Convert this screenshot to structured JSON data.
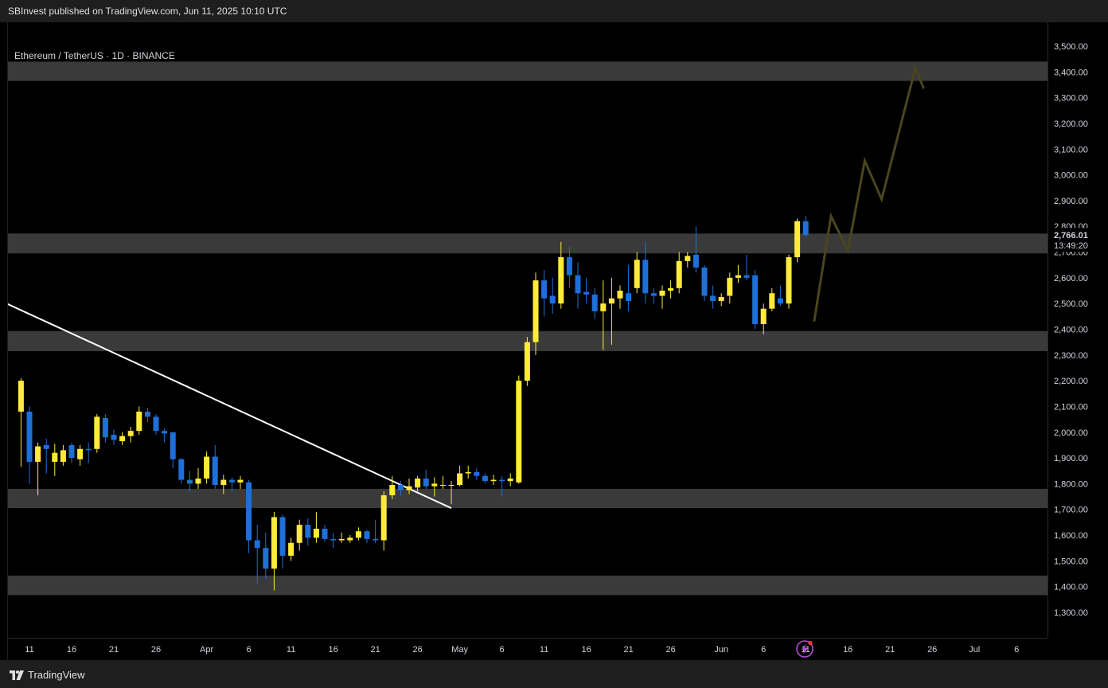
{
  "header": {
    "publish_note": "SBInvest published on TradingView.com, Jun 11, 2025 10:10 UTC"
  },
  "symbol": {
    "label": "Ethereum / TetherUS · 1D · BINANCE"
  },
  "footer": {
    "brand": "TradingView"
  },
  "colors": {
    "up": "#ffeb3b",
    "down": "#1e6fd9",
    "zone": "#3a3a3a",
    "trendline": "#ffffff",
    "projection": "#4a4520",
    "background": "#000000"
  },
  "icons": {
    "logo": "tradingview-logo-icon",
    "bolt": "lightning-bolt-icon"
  },
  "chart_data": {
    "type": "candlestick",
    "title": "Ethereum / TetherUS · 1D · BINANCE",
    "xlabel": "",
    "ylabel": "",
    "y_axis": {
      "position": "right",
      "range": [
        1230,
        3570
      ],
      "ticks": [
        "1,300.00",
        "1,400.00",
        "1,500.00",
        "1,600.00",
        "1,700.00",
        "1,800.00",
        "1,900.00",
        "2,000.00",
        "2,100.00",
        "2,200.00",
        "2,300.00",
        "2,400.00",
        "2,500.00",
        "2,600.00",
        "2,700.00",
        "2,800.00",
        "2,900.00",
        "3,000.00",
        "3,100.00",
        "3,200.00",
        "3,300.00",
        "3,400.00",
        "3,500.00"
      ],
      "last_price": "2,766.01",
      "countdown": "13:49:20"
    },
    "x_axis": {
      "start": "2025-03-11",
      "end": "2025-07-11",
      "ticks": [
        {
          "label": "11",
          "date": "2025-03-11"
        },
        {
          "label": "16",
          "date": "2025-03-16"
        },
        {
          "label": "21",
          "date": "2025-03-21"
        },
        {
          "label": "26",
          "date": "2025-03-26"
        },
        {
          "label": "Apr",
          "date": "2025-04-01"
        },
        {
          "label": "6",
          "date": "2025-04-06"
        },
        {
          "label": "11",
          "date": "2025-04-11"
        },
        {
          "label": "16",
          "date": "2025-04-16"
        },
        {
          "label": "21",
          "date": "2025-04-21"
        },
        {
          "label": "26",
          "date": "2025-04-26"
        },
        {
          "label": "May",
          "date": "2025-05-01"
        },
        {
          "label": "6",
          "date": "2025-05-06"
        },
        {
          "label": "11",
          "date": "2025-05-11"
        },
        {
          "label": "16",
          "date": "2025-05-16"
        },
        {
          "label": "21",
          "date": "2025-05-21"
        },
        {
          "label": "26",
          "date": "2025-05-26"
        },
        {
          "label": "Jun",
          "date": "2025-06-01"
        },
        {
          "label": "6",
          "date": "2025-06-06"
        },
        {
          "label": "11",
          "date": "2025-06-11"
        },
        {
          "label": "16",
          "date": "2025-06-16"
        },
        {
          "label": "21",
          "date": "2025-06-21"
        },
        {
          "label": "26",
          "date": "2025-06-26"
        },
        {
          "label": "Jul",
          "date": "2025-07-01"
        },
        {
          "label": "6",
          "date": "2025-07-06"
        }
      ]
    },
    "zones": [
      {
        "from": 3365,
        "to": 3440
      },
      {
        "from": 2695,
        "to": 2772
      },
      {
        "from": 2315,
        "to": 2393
      },
      {
        "from": 1705,
        "to": 1780
      },
      {
        "from": 1367,
        "to": 1443
      }
    ],
    "trendline": {
      "from": {
        "date": "2025-02-27",
        "price": 2640
      },
      "to": {
        "date": "2025-04-30",
        "price": 1705
      }
    },
    "projection": [
      {
        "date": "2025-06-12",
        "price": 2430
      },
      {
        "date": "2025-06-14",
        "price": 2840
      },
      {
        "date": "2025-06-16",
        "price": 2705
      },
      {
        "date": "2025-06-18",
        "price": 3055
      },
      {
        "date": "2025-06-20",
        "price": 2905
      },
      {
        "date": "2025-06-24",
        "price": 3415
      },
      {
        "date": "2025-06-25",
        "price": 3335
      }
    ],
    "candles": [
      {
        "date": "2025-03-10",
        "o": 2080,
        "h": 2210,
        "l": 1865,
        "c": 2200
      },
      {
        "date": "2025-03-11",
        "o": 2080,
        "h": 2100,
        "l": 1800,
        "c": 1885
      },
      {
        "date": "2025-03-12",
        "o": 1885,
        "h": 1960,
        "l": 1755,
        "c": 1945
      },
      {
        "date": "2025-03-13",
        "o": 1950,
        "h": 1975,
        "l": 1840,
        "c": 1935
      },
      {
        "date": "2025-03-14",
        "o": 1885,
        "h": 1955,
        "l": 1830,
        "c": 1920
      },
      {
        "date": "2025-03-15",
        "o": 1885,
        "h": 1950,
        "l": 1870,
        "c": 1930
      },
      {
        "date": "2025-03-16",
        "o": 1950,
        "h": 1960,
        "l": 1880,
        "c": 1900
      },
      {
        "date": "2025-03-17",
        "o": 1895,
        "h": 1950,
        "l": 1870,
        "c": 1935
      },
      {
        "date": "2025-03-18",
        "o": 1935,
        "h": 1960,
        "l": 1880,
        "c": 1930
      },
      {
        "date": "2025-03-19",
        "o": 1935,
        "h": 2070,
        "l": 1920,
        "c": 2060
      },
      {
        "date": "2025-03-20",
        "o": 2055,
        "h": 2070,
        "l": 1960,
        "c": 1980
      },
      {
        "date": "2025-03-21",
        "o": 1990,
        "h": 2010,
        "l": 1950,
        "c": 1970
      },
      {
        "date": "2025-03-22",
        "o": 1965,
        "h": 2000,
        "l": 1950,
        "c": 1985
      },
      {
        "date": "2025-03-23",
        "o": 1985,
        "h": 2020,
        "l": 1960,
        "c": 2005
      },
      {
        "date": "2025-03-24",
        "o": 2005,
        "h": 2100,
        "l": 1990,
        "c": 2080
      },
      {
        "date": "2025-03-25",
        "o": 2080,
        "h": 2095,
        "l": 2040,
        "c": 2060
      },
      {
        "date": "2025-03-26",
        "o": 2060,
        "h": 2070,
        "l": 1990,
        "c": 2005
      },
      {
        "date": "2025-03-27",
        "o": 2005,
        "h": 2015,
        "l": 1960,
        "c": 1995
      },
      {
        "date": "2025-03-28",
        "o": 2000,
        "h": 2000,
        "l": 1860,
        "c": 1895
      },
      {
        "date": "2025-03-29",
        "o": 1895,
        "h": 1900,
        "l": 1800,
        "c": 1815
      },
      {
        "date": "2025-03-30",
        "o": 1815,
        "h": 1850,
        "l": 1770,
        "c": 1800
      },
      {
        "date": "2025-03-31",
        "o": 1800,
        "h": 1860,
        "l": 1780,
        "c": 1820
      },
      {
        "date": "2025-04-01",
        "o": 1820,
        "h": 1925,
        "l": 1800,
        "c": 1905
      },
      {
        "date": "2025-04-02",
        "o": 1905,
        "h": 1950,
        "l": 1780,
        "c": 1795
      },
      {
        "date": "2025-04-03",
        "o": 1795,
        "h": 1835,
        "l": 1760,
        "c": 1815
      },
      {
        "date": "2025-04-04",
        "o": 1815,
        "h": 1825,
        "l": 1770,
        "c": 1805
      },
      {
        "date": "2025-04-05",
        "o": 1805,
        "h": 1830,
        "l": 1780,
        "c": 1815
      },
      {
        "date": "2025-04-06",
        "o": 1805,
        "h": 1815,
        "l": 1530,
        "c": 1580
      },
      {
        "date": "2025-04-07",
        "o": 1580,
        "h": 1640,
        "l": 1410,
        "c": 1550
      },
      {
        "date": "2025-04-08",
        "o": 1550,
        "h": 1610,
        "l": 1430,
        "c": 1470
      },
      {
        "date": "2025-04-09",
        "o": 1470,
        "h": 1690,
        "l": 1385,
        "c": 1670
      },
      {
        "date": "2025-04-10",
        "o": 1670,
        "h": 1680,
        "l": 1470,
        "c": 1520
      },
      {
        "date": "2025-04-11",
        "o": 1520,
        "h": 1590,
        "l": 1500,
        "c": 1570
      },
      {
        "date": "2025-04-12",
        "o": 1570,
        "h": 1660,
        "l": 1540,
        "c": 1640
      },
      {
        "date": "2025-04-13",
        "o": 1640,
        "h": 1665,
        "l": 1560,
        "c": 1590
      },
      {
        "date": "2025-04-14",
        "o": 1590,
        "h": 1690,
        "l": 1570,
        "c": 1625
      },
      {
        "date": "2025-04-15",
        "o": 1625,
        "h": 1640,
        "l": 1575,
        "c": 1585
      },
      {
        "date": "2025-04-16",
        "o": 1585,
        "h": 1610,
        "l": 1550,
        "c": 1580
      },
      {
        "date": "2025-04-17",
        "o": 1580,
        "h": 1610,
        "l": 1570,
        "c": 1585
      },
      {
        "date": "2025-04-18",
        "o": 1580,
        "h": 1600,
        "l": 1570,
        "c": 1590
      },
      {
        "date": "2025-04-19",
        "o": 1590,
        "h": 1630,
        "l": 1580,
        "c": 1615
      },
      {
        "date": "2025-04-20",
        "o": 1615,
        "h": 1620,
        "l": 1570,
        "c": 1585
      },
      {
        "date": "2025-04-21",
        "o": 1585,
        "h": 1660,
        "l": 1570,
        "c": 1580
      },
      {
        "date": "2025-04-22",
        "o": 1580,
        "h": 1770,
        "l": 1540,
        "c": 1755
      },
      {
        "date": "2025-04-23",
        "o": 1755,
        "h": 1830,
        "l": 1740,
        "c": 1795
      },
      {
        "date": "2025-04-24",
        "o": 1795,
        "h": 1810,
        "l": 1750,
        "c": 1775
      },
      {
        "date": "2025-04-25",
        "o": 1775,
        "h": 1820,
        "l": 1760,
        "c": 1790
      },
      {
        "date": "2025-04-26",
        "o": 1785,
        "h": 1830,
        "l": 1770,
        "c": 1820
      },
      {
        "date": "2025-04-27",
        "o": 1820,
        "h": 1855,
        "l": 1780,
        "c": 1790
      },
      {
        "date": "2025-04-28",
        "o": 1790,
        "h": 1825,
        "l": 1750,
        "c": 1800
      },
      {
        "date": "2025-04-29",
        "o": 1795,
        "h": 1830,
        "l": 1780,
        "c": 1795
      },
      {
        "date": "2025-04-30",
        "o": 1795,
        "h": 1810,
        "l": 1720,
        "c": 1795
      },
      {
        "date": "2025-05-01",
        "o": 1795,
        "h": 1870,
        "l": 1790,
        "c": 1840
      },
      {
        "date": "2025-05-02",
        "o": 1840,
        "h": 1870,
        "l": 1820,
        "c": 1845
      },
      {
        "date": "2025-05-03",
        "o": 1845,
        "h": 1860,
        "l": 1815,
        "c": 1830
      },
      {
        "date": "2025-05-04",
        "o": 1830,
        "h": 1840,
        "l": 1800,
        "c": 1810
      },
      {
        "date": "2025-05-05",
        "o": 1810,
        "h": 1835,
        "l": 1795,
        "c": 1815
      },
      {
        "date": "2025-05-06",
        "o": 1815,
        "h": 1830,
        "l": 1750,
        "c": 1810
      },
      {
        "date": "2025-05-07",
        "o": 1810,
        "h": 1840,
        "l": 1790,
        "c": 1820
      },
      {
        "date": "2025-05-08",
        "o": 1805,
        "h": 2220,
        "l": 1800,
        "c": 2200
      },
      {
        "date": "2025-05-09",
        "o": 2200,
        "h": 2370,
        "l": 2180,
        "c": 2350
      },
      {
        "date": "2025-05-10",
        "o": 2350,
        "h": 2620,
        "l": 2300,
        "c": 2590
      },
      {
        "date": "2025-05-11",
        "o": 2590,
        "h": 2630,
        "l": 2450,
        "c": 2520
      },
      {
        "date": "2025-05-12",
        "o": 2530,
        "h": 2600,
        "l": 2460,
        "c": 2500
      },
      {
        "date": "2025-05-13",
        "o": 2500,
        "h": 2740,
        "l": 2480,
        "c": 2680
      },
      {
        "date": "2025-05-14",
        "o": 2680,
        "h": 2720,
        "l": 2560,
        "c": 2610
      },
      {
        "date": "2025-05-15",
        "o": 2610,
        "h": 2660,
        "l": 2480,
        "c": 2540
      },
      {
        "date": "2025-05-16",
        "o": 2545,
        "h": 2600,
        "l": 2500,
        "c": 2535
      },
      {
        "date": "2025-05-17",
        "o": 2535,
        "h": 2560,
        "l": 2440,
        "c": 2470
      },
      {
        "date": "2025-05-18",
        "o": 2470,
        "h": 2590,
        "l": 2320,
        "c": 2500
      },
      {
        "date": "2025-05-19",
        "o": 2500,
        "h": 2600,
        "l": 2340,
        "c": 2520
      },
      {
        "date": "2025-05-20",
        "o": 2520,
        "h": 2570,
        "l": 2480,
        "c": 2550
      },
      {
        "date": "2025-05-21",
        "o": 2540,
        "h": 2650,
        "l": 2470,
        "c": 2510
      },
      {
        "date": "2025-05-22",
        "o": 2560,
        "h": 2700,
        "l": 2540,
        "c": 2670
      },
      {
        "date": "2025-05-23",
        "o": 2670,
        "h": 2740,
        "l": 2500,
        "c": 2540
      },
      {
        "date": "2025-05-24",
        "o": 2540,
        "h": 2560,
        "l": 2500,
        "c": 2530
      },
      {
        "date": "2025-05-25",
        "o": 2530,
        "h": 2570,
        "l": 2480,
        "c": 2550
      },
      {
        "date": "2025-05-26",
        "o": 2550,
        "h": 2590,
        "l": 2520,
        "c": 2560
      },
      {
        "date": "2025-05-27",
        "o": 2560,
        "h": 2700,
        "l": 2540,
        "c": 2665
      },
      {
        "date": "2025-05-28",
        "o": 2665,
        "h": 2700,
        "l": 2640,
        "c": 2685
      },
      {
        "date": "2025-05-29",
        "o": 2690,
        "h": 2800,
        "l": 2620,
        "c": 2640
      },
      {
        "date": "2025-05-30",
        "o": 2640,
        "h": 2650,
        "l": 2510,
        "c": 2530
      },
      {
        "date": "2025-05-31",
        "o": 2530,
        "h": 2570,
        "l": 2480,
        "c": 2510
      },
      {
        "date": "2025-06-01",
        "o": 2510,
        "h": 2540,
        "l": 2490,
        "c": 2525
      },
      {
        "date": "2025-06-02",
        "o": 2530,
        "h": 2620,
        "l": 2500,
        "c": 2600
      },
      {
        "date": "2025-06-03",
        "o": 2600,
        "h": 2650,
        "l": 2580,
        "c": 2610
      },
      {
        "date": "2025-06-04",
        "o": 2610,
        "h": 2690,
        "l": 2590,
        "c": 2600
      },
      {
        "date": "2025-06-05",
        "o": 2610,
        "h": 2630,
        "l": 2400,
        "c": 2420
      },
      {
        "date": "2025-06-06",
        "o": 2420,
        "h": 2500,
        "l": 2380,
        "c": 2480
      },
      {
        "date": "2025-06-07",
        "o": 2480,
        "h": 2560,
        "l": 2470,
        "c": 2540
      },
      {
        "date": "2025-06-08",
        "o": 2520,
        "h": 2570,
        "l": 2490,
        "c": 2500
      },
      {
        "date": "2025-06-09",
        "o": 2500,
        "h": 2690,
        "l": 2480,
        "c": 2680
      },
      {
        "date": "2025-06-10",
        "o": 2680,
        "h": 2830,
        "l": 2660,
        "c": 2820
      },
      {
        "date": "2025-06-11",
        "o": 2820,
        "h": 2840,
        "l": 2760,
        "c": 2766
      }
    ]
  }
}
